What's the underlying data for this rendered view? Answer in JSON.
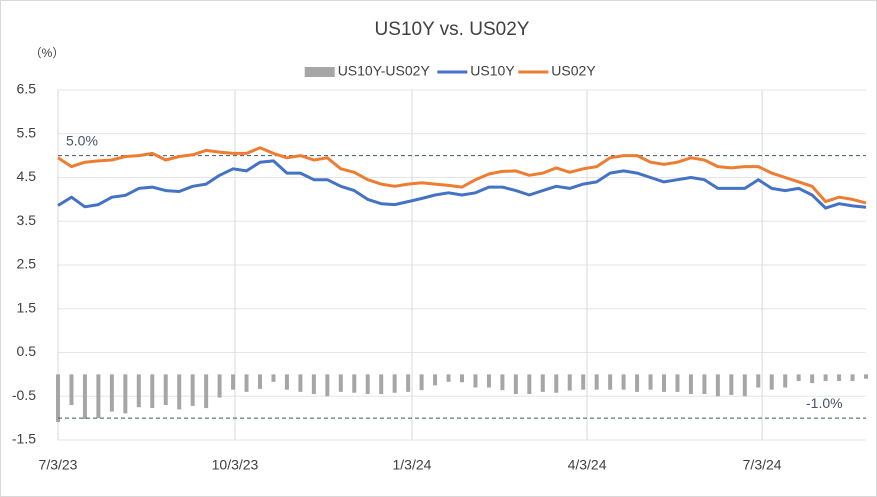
{
  "chart_data": {
    "type": "combo",
    "title": "US10Y vs. US02Y",
    "y_label": "（%）",
    "x": [
      "7/3/23",
      "7/10/23",
      "7/17/23",
      "7/24/23",
      "7/31/23",
      "8/7/23",
      "8/14/23",
      "8/21/23",
      "8/28/23",
      "9/4/23",
      "9/11/23",
      "9/18/23",
      "9/25/23",
      "10/2/23",
      "10/9/23",
      "10/16/23",
      "10/23/23",
      "10/30/23",
      "11/6/23",
      "11/13/23",
      "11/20/23",
      "11/27/23",
      "12/4/23",
      "12/11/23",
      "12/18/23",
      "12/25/23",
      "1/1/24",
      "1/8/24",
      "1/15/24",
      "1/22/24",
      "1/29/24",
      "2/5/24",
      "2/12/24",
      "2/19/24",
      "2/26/24",
      "3/4/24",
      "3/11/24",
      "3/18/24",
      "3/25/24",
      "4/1/24",
      "4/8/24",
      "4/15/24",
      "4/22/24",
      "4/29/24",
      "5/6/24",
      "5/13/24",
      "5/20/24",
      "5/27/24",
      "6/3/24",
      "6/10/24",
      "6/17/24",
      "6/24/24",
      "7/1/24",
      "7/8/24",
      "7/15/24",
      "7/22/24",
      "7/29/24",
      "8/5/24",
      "8/12/24",
      "8/19/24",
      "8/26/24"
    ],
    "series": [
      {
        "name": "US10Y-US02Y",
        "kind": "bar",
        "color": "#a6a6a6",
        "values": [
          -1.09,
          -0.7,
          -1.02,
          -1.0,
          -0.85,
          -0.89,
          -0.75,
          -0.77,
          -0.7,
          -0.8,
          -0.72,
          -0.77,
          -0.53,
          -0.35,
          -0.4,
          -0.33,
          -0.17,
          -0.35,
          -0.4,
          -0.45,
          -0.5,
          -0.4,
          -0.42,
          -0.45,
          -0.45,
          -0.42,
          -0.4,
          -0.36,
          -0.25,
          -0.17,
          -0.18,
          -0.3,
          -0.3,
          -0.36,
          -0.45,
          -0.45,
          -0.4,
          -0.42,
          -0.37,
          -0.35,
          -0.35,
          -0.35,
          -0.35,
          -0.4,
          -0.35,
          -0.4,
          -0.4,
          -0.45,
          -0.45,
          -0.5,
          -0.47,
          -0.5,
          -0.3,
          -0.35,
          -0.3,
          -0.15,
          -0.2,
          -0.15,
          -0.15,
          -0.15,
          -0.1
        ]
      },
      {
        "name": "US10Y",
        "kind": "line",
        "color": "#4472c4",
        "values": [
          3.86,
          4.05,
          3.83,
          3.88,
          4.05,
          4.09,
          4.25,
          4.28,
          4.2,
          4.18,
          4.3,
          4.35,
          4.55,
          4.7,
          4.65,
          4.85,
          4.88,
          4.6,
          4.6,
          4.45,
          4.45,
          4.3,
          4.2,
          4.0,
          3.9,
          3.88,
          3.95,
          4.02,
          4.1,
          4.15,
          4.1,
          4.15,
          4.28,
          4.28,
          4.2,
          4.1,
          4.2,
          4.3,
          4.25,
          4.35,
          4.4,
          4.6,
          4.65,
          4.6,
          4.5,
          4.4,
          4.45,
          4.5,
          4.45,
          4.25,
          4.25,
          4.25,
          4.45,
          4.25,
          4.2,
          4.25,
          4.1,
          3.8,
          3.9,
          3.85,
          3.82
        ]
      },
      {
        "name": "US02Y",
        "kind": "line",
        "color": "#ed7d31",
        "values": [
          4.95,
          4.75,
          4.85,
          4.88,
          4.9,
          4.98,
          5.0,
          5.05,
          4.9,
          4.98,
          5.02,
          5.12,
          5.08,
          5.05,
          5.05,
          5.18,
          5.05,
          4.95,
          5.0,
          4.9,
          4.95,
          4.7,
          4.62,
          4.45,
          4.35,
          4.3,
          4.35,
          4.38,
          4.35,
          4.32,
          4.28,
          4.45,
          4.58,
          4.64,
          4.65,
          4.55,
          4.6,
          4.72,
          4.62,
          4.7,
          4.75,
          4.95,
          5.0,
          5.0,
          4.85,
          4.8,
          4.85,
          4.95,
          4.9,
          4.75,
          4.72,
          4.75,
          4.75,
          4.6,
          4.5,
          4.4,
          4.3,
          3.95,
          4.05,
          4.0,
          3.92
        ]
      }
    ],
    "xlim": [
      "7/3/23",
      "8/26/24"
    ],
    "xticks": [
      "7/3/23",
      "10/3/23",
      "1/3/24",
      "4/3/24",
      "7/3/24"
    ],
    "ylim": [
      -1.5,
      6.5
    ],
    "yticks": [
      -1.5,
      -0.5,
      0.5,
      1.5,
      2.5,
      3.5,
      4.5,
      5.5,
      6.5
    ],
    "grid": true,
    "legend": "top",
    "reference_lines": [
      {
        "value": 5.0,
        "label": "5.0%",
        "color": "#44546a"
      },
      {
        "value": -1.0,
        "label": "-1.0%",
        "color": "#44546a"
      }
    ]
  }
}
